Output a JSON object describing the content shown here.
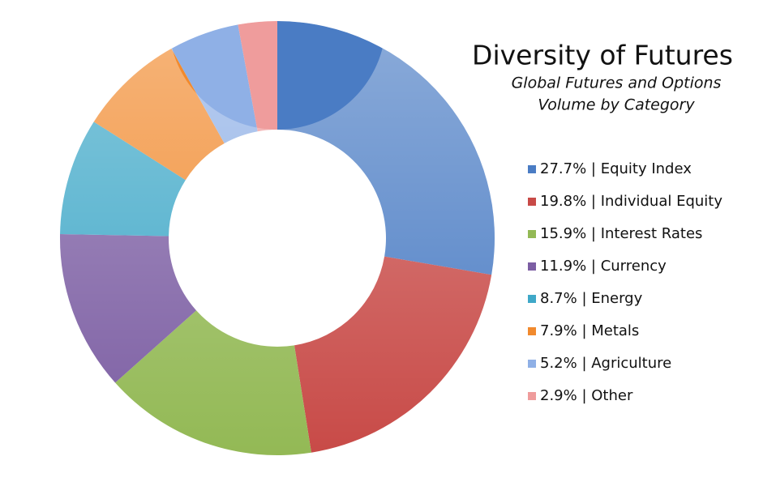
{
  "chart_data": {
    "type": "donut",
    "title": "Diversity of Futures",
    "subtitle": [
      "Global Futures and Options",
      "Volume by Category"
    ],
    "categories": [
      "27.7% | Equity Index",
      "19.8% | Individual Equity",
      "15.9% | Interest Rates",
      "11.9% | Currency",
      "8.7% | Energy",
      "7.9% | Metals",
      "5.2% | Agriculture",
      "2.9% | Other"
    ],
    "values": [
      27.7,
      19.8,
      15.9,
      11.9,
      8.7,
      7.9,
      5.2,
      2.9
    ],
    "colors": [
      "#4a7cc4",
      "#c84a47",
      "#93b955",
      "#7c5ea3",
      "#3fa8c8",
      "#f18a2e",
      "#8fb0e6",
      "#ef9c9c"
    ]
  }
}
